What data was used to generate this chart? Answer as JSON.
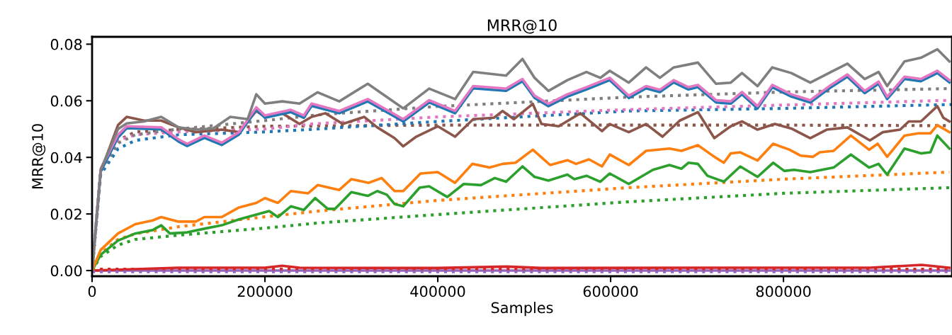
{
  "chart_data": {
    "type": "line",
    "title": "MRR@10",
    "xlabel": "Samples",
    "ylabel": "MRR@10",
    "xlim": [
      0,
      995000
    ],
    "ylim": [
      -0.002,
      0.0826
    ],
    "xticks": [
      0,
      200000,
      400000,
      600000,
      800000
    ],
    "yticks": [
      {
        "value": 0,
        "label": "0.00"
      },
      {
        "value": 0.02,
        "label": "0.02"
      },
      {
        "value": 0.04,
        "label": "0.04"
      },
      {
        "value": 0.06,
        "label": "0.06"
      },
      {
        "value": 0.08,
        "label": "0.08"
      }
    ],
    "grid": false,
    "series": [
      {
        "color": "#9467bd",
        "line_style": "solid",
        "x": [
          0,
          500000,
          992000
        ],
        "values": [
          0,
          0,
          0
        ]
      },
      {
        "color": "#d62728",
        "line_style": "solid",
        "x": [
          0,
          100000,
          200000,
          220000,
          240000,
          400000,
          480000,
          520000,
          700000,
          900000,
          960000,
          992000
        ],
        "values": [
          0,
          0.001,
          0.001,
          0.0017,
          0.001,
          0.0009,
          0.0014,
          0.0009,
          0.001,
          0.001,
          0.002,
          0.001
        ]
      },
      {
        "color": "#d62728",
        "line_style": "dotted",
        "x": [
          0,
          500000,
          992000
        ],
        "values": [
          0.0005,
          0.0005,
          0.0005
        ]
      },
      {
        "color": "#9467bd",
        "line_style": "dotted",
        "x": [
          0,
          500000,
          992000
        ],
        "values": [
          -0.0004,
          -0.0004,
          -0.0004
        ]
      },
      {
        "color": "#2ca02c",
        "line_style": "dotted",
        "x": [
          0,
          10000,
          30000,
          50000,
          100000,
          200000,
          261000,
          400000,
          621000,
          800000,
          992000
        ],
        "values": [
          0,
          0.005,
          0.009,
          0.011,
          0.0125,
          0.015,
          0.0168,
          0.0198,
          0.0243,
          0.0273,
          0.0293
        ]
      },
      {
        "color": "#ff7f0e",
        "line_style": "dotted",
        "x": [
          0,
          10000,
          30000,
          50000,
          100000,
          200000,
          261000,
          400000,
          621000,
          800000,
          992000
        ],
        "values": [
          0,
          0.006,
          0.011,
          0.013,
          0.0155,
          0.019,
          0.021,
          0.0248,
          0.0293,
          0.0323,
          0.0348
        ]
      },
      {
        "color": "#8c564b",
        "line_style": "dotted",
        "x": [
          0,
          10000,
          30000,
          50000,
          100000,
          200000,
          400000,
          621000,
          800000,
          992000
        ],
        "values": [
          0,
          0.035,
          0.046,
          0.049,
          0.0498,
          0.051,
          0.0514,
          0.0514,
          0.0514,
          0.0512
        ]
      },
      {
        "color": "#1f77b4",
        "line_style": "dotted",
        "x": [
          0,
          10000,
          30000,
          50000,
          100000,
          200000,
          260000,
          400000,
          621000,
          800000,
          995000
        ],
        "values": [
          0,
          0.034,
          0.043,
          0.046,
          0.048,
          0.049,
          0.05,
          0.0527,
          0.0564,
          0.0573,
          0.0587
        ]
      },
      {
        "color": "#e377c2",
        "line_style": "dotted",
        "x": [
          0,
          10000,
          30000,
          50000,
          100000,
          200000,
          254000,
          400000,
          621000,
          800000,
          995000
        ],
        "values": [
          0,
          0.035,
          0.046,
          0.048,
          0.049,
          0.05,
          0.0518,
          0.0543,
          0.0569,
          0.0585,
          0.0602
        ]
      },
      {
        "color": "#7f7f7f",
        "line_style": "dotted",
        "x": [
          0,
          10000,
          30000,
          50000,
          100000,
          200000,
          260000,
          400000,
          621000,
          800000,
          992000
        ],
        "values": [
          0,
          0.035,
          0.045,
          0.048,
          0.05,
          0.053,
          0.055,
          0.058,
          0.0613,
          0.0631,
          0.0643
        ]
      },
      {
        "color": "#2ca02c",
        "line_style": "solid",
        "x": [
          0,
          10000,
          30000,
          50000,
          70000,
          80000,
          90000,
          110000,
          130000,
          150000,
          170000,
          190000,
          205000,
          215000,
          230000,
          245000,
          258000,
          272700,
          281000,
          300000,
          319000,
          330000,
          341000,
          350000,
          360000,
          379000,
          390000,
          411000,
          430000,
          450000,
          466000,
          479000,
          498000,
          512000,
          528000,
          550000,
          558000,
          572000,
          588000,
          599000,
          621000,
          649000,
          668000,
          682000,
          690000,
          701000,
          712000,
          731000,
          750000,
          770000,
          788000,
          801000,
          812000,
          831000,
          858000,
          878000,
          899000,
          910000,
          920000,
          940000,
          959000,
          970000,
          978000,
          992000
        ],
        "values": [
          0,
          0.0056,
          0.0106,
          0.0131,
          0.0143,
          0.016,
          0.0131,
          0.0135,
          0.0148,
          0.016,
          0.0181,
          0.0198,
          0.021,
          0.0189,
          0.0227,
          0.0214,
          0.0256,
          0.0218,
          0.0218,
          0.0277,
          0.0264,
          0.0281,
          0.0268,
          0.0235,
          0.0227,
          0.0293,
          0.0298,
          0.026,
          0.0306,
          0.0302,
          0.0327,
          0.0314,
          0.0368,
          0.0331,
          0.0318,
          0.0339,
          0.0323,
          0.0335,
          0.0314,
          0.0343,
          0.0306,
          0.0356,
          0.0373,
          0.036,
          0.0381,
          0.0377,
          0.0335,
          0.0314,
          0.0368,
          0.0331,
          0.0381,
          0.0352,
          0.0356,
          0.0348,
          0.0364,
          0.041,
          0.0364,
          0.0377,
          0.0339,
          0.0431,
          0.0414,
          0.0418,
          0.0477,
          0.0431
        ]
      },
      {
        "color": "#ff7f0e",
        "line_style": "solid",
        "x": [
          0,
          10000,
          30000,
          50000,
          70000,
          80000,
          100000,
          120000,
          130000,
          150000,
          170000,
          190000,
          200000,
          215000,
          230000,
          250000,
          261000,
          286000,
          300000,
          320000,
          335000,
          350000,
          360000,
          380000,
          400000,
          420000,
          440000,
          460000,
          475000,
          490000,
          510000,
          530000,
          550000,
          560000,
          575000,
          590000,
          599000,
          621000,
          641000,
          668000,
          682000,
          701000,
          720000,
          731000,
          739000,
          750000,
          770000,
          788000,
          807000,
          820000,
          834000,
          842000,
          858000,
          878000,
          899000,
          909000,
          920000,
          940000,
          956000,
          970000,
          978000,
          992000
        ],
        "values": [
          0,
          0.0073,
          0.0131,
          0.0164,
          0.0177,
          0.0189,
          0.0173,
          0.0173,
          0.0189,
          0.0189,
          0.0223,
          0.0239,
          0.0256,
          0.0239,
          0.0281,
          0.0273,
          0.0302,
          0.0285,
          0.0323,
          0.031,
          0.0327,
          0.0281,
          0.0281,
          0.0343,
          0.0348,
          0.031,
          0.0377,
          0.0364,
          0.0377,
          0.0381,
          0.0427,
          0.0373,
          0.039,
          0.0377,
          0.0393,
          0.0368,
          0.041,
          0.0373,
          0.0423,
          0.0431,
          0.0423,
          0.0443,
          0.0402,
          0.0381,
          0.0414,
          0.0418,
          0.0389,
          0.0448,
          0.0427,
          0.0406,
          0.0402,
          0.0418,
          0.0423,
          0.0477,
          0.0427,
          0.0448,
          0.0402,
          0.0477,
          0.0485,
          0.0485,
          0.0514,
          0.0489
        ]
      },
      {
        "color": "#8c564b",
        "line_style": "solid",
        "x": [
          0,
          10000,
          30000,
          40000,
          60000,
          80000,
          100000,
          120000,
          150000,
          170000,
          190000,
          200000,
          220000,
          240000,
          254000,
          270000,
          290000,
          315000,
          330000,
          350000,
          360000,
          375000,
          400000,
          420000,
          441000,
          465000,
          475000,
          488000,
          510000,
          520000,
          540000,
          565000,
          590000,
          599000,
          621000,
          641000,
          660000,
          680000,
          701000,
          720000,
          739000,
          752000,
          770000,
          790000,
          809000,
          831000,
          850000,
          874000,
          900000,
          915000,
          935000,
          945000,
          959000,
          978000,
          985000,
          992000
        ],
        "values": [
          0,
          0.035,
          0.0514,
          0.0543,
          0.053,
          0.053,
          0.0506,
          0.0489,
          0.0498,
          0.0489,
          0.0564,
          0.0543,
          0.0556,
          0.0518,
          0.0543,
          0.0556,
          0.0518,
          0.0543,
          0.0506,
          0.0468,
          0.0439,
          0.0473,
          0.051,
          0.0473,
          0.0535,
          0.054,
          0.0564,
          0.0535,
          0.0589,
          0.0518,
          0.051,
          0.0556,
          0.0493,
          0.0518,
          0.0489,
          0.0518,
          0.0473,
          0.053,
          0.056,
          0.0468,
          0.051,
          0.0527,
          0.0498,
          0.0518,
          0.0502,
          0.0468,
          0.0498,
          0.0506,
          0.046,
          0.0489,
          0.0498,
          0.0527,
          0.0527,
          0.0581,
          0.054,
          0.0527
        ]
      },
      {
        "color": "#1f77b4",
        "line_style": "solid",
        "x": [
          0,
          10000,
          30000,
          40000,
          80000,
          100000,
          110000,
          130000,
          150000,
          170000,
          190000,
          200000,
          230000,
          245000,
          254000,
          286000,
          319000,
          360000,
          390000,
          420000,
          441000,
          479000,
          498000,
          512000,
          528000,
          550000,
          572000,
          599000,
          621000,
          641000,
          657000,
          673000,
          690000,
          701000,
          722000,
          739000,
          752000,
          770000,
          787000,
          809000,
          831000,
          855000,
          874000,
          894000,
          910000,
          920000,
          940000,
          959000,
          978000,
          992000
        ],
        "values": [
          0,
          0.035,
          0.047,
          0.0503,
          0.0499,
          0.0456,
          0.044,
          0.0469,
          0.0444,
          0.0481,
          0.0569,
          0.054,
          0.056,
          0.054,
          0.0582,
          0.0556,
          0.0598,
          0.0527,
          0.0594,
          0.0556,
          0.0644,
          0.0635,
          0.0669,
          0.061,
          0.0581,
          0.0615,
          0.064,
          0.0673,
          0.061,
          0.0644,
          0.0631,
          0.0665,
          0.064,
          0.0648,
          0.0594,
          0.059,
          0.0623,
          0.0573,
          0.0648,
          0.0615,
          0.0594,
          0.0648,
          0.0685,
          0.0627,
          0.066,
          0.0606,
          0.0677,
          0.0669,
          0.0698,
          0.0665
        ]
      },
      {
        "color": "#e377c2",
        "line_style": "solid",
        "x": [
          0,
          10000,
          30000,
          40000,
          80000,
          100000,
          110000,
          130000,
          150000,
          170000,
          190000,
          200000,
          230000,
          245000,
          254000,
          286000,
          319000,
          360000,
          390000,
          420000,
          441000,
          479000,
          498000,
          512000,
          528000,
          550000,
          572000,
          599000,
          621000,
          641000,
          657000,
          673000,
          690000,
          701000,
          722000,
          739000,
          752000,
          770000,
          787000,
          809000,
          831000,
          855000,
          874000,
          894000,
          910000,
          920000,
          940000,
          959000,
          978000,
          992000
        ],
        "values": [
          0,
          0.036,
          0.048,
          0.051,
          0.0506,
          0.0464,
          0.0448,
          0.0477,
          0.0452,
          0.0489,
          0.0577,
          0.0548,
          0.0568,
          0.0548,
          0.059,
          0.0564,
          0.0606,
          0.0535,
          0.0602,
          0.0564,
          0.0652,
          0.0643,
          0.0677,
          0.0618,
          0.0589,
          0.0623,
          0.0648,
          0.0681,
          0.0618,
          0.0652,
          0.0639,
          0.0673,
          0.0648,
          0.0656,
          0.0602,
          0.0598,
          0.0631,
          0.0581,
          0.0656,
          0.0623,
          0.0602,
          0.0656,
          0.0693,
          0.0635,
          0.0668,
          0.0614,
          0.0685,
          0.0677,
          0.0706,
          0.0673
        ]
      },
      {
        "color": "#7f7f7f",
        "line_style": "solid",
        "x": [
          0,
          10000,
          30000,
          40000,
          60000,
          80000,
          100000,
          120000,
          140000,
          160000,
          180000,
          190000,
          200000,
          220000,
          240000,
          261000,
          286000,
          319000,
          360000,
          390000,
          420000,
          441000,
          479000,
          498000,
          512000,
          528000,
          550000,
          572000,
          588000,
          599000,
          621000,
          641000,
          657000,
          673000,
          701000,
          722000,
          739000,
          752000,
          770000,
          787000,
          809000,
          831000,
          855000,
          874000,
          894000,
          910000,
          920000,
          940000,
          959000,
          978000,
          992000
        ],
        "values": [
          0,
          0.0356,
          0.05,
          0.052,
          0.0527,
          0.0543,
          0.0506,
          0.0498,
          0.0502,
          0.0543,
          0.0535,
          0.0623,
          0.059,
          0.0598,
          0.059,
          0.063,
          0.0598,
          0.066,
          0.0573,
          0.0643,
          0.0606,
          0.0702,
          0.0689,
          0.0748,
          0.0681,
          0.0635,
          0.0673,
          0.0702,
          0.0681,
          0.0706,
          0.0664,
          0.0718,
          0.0681,
          0.0718,
          0.0735,
          0.066,
          0.0664,
          0.0698,
          0.0652,
          0.0718,
          0.0698,
          0.0664,
          0.0702,
          0.0731,
          0.0677,
          0.0702,
          0.0652,
          0.0739,
          0.0752,
          0.0782,
          0.0739
        ]
      }
    ]
  }
}
